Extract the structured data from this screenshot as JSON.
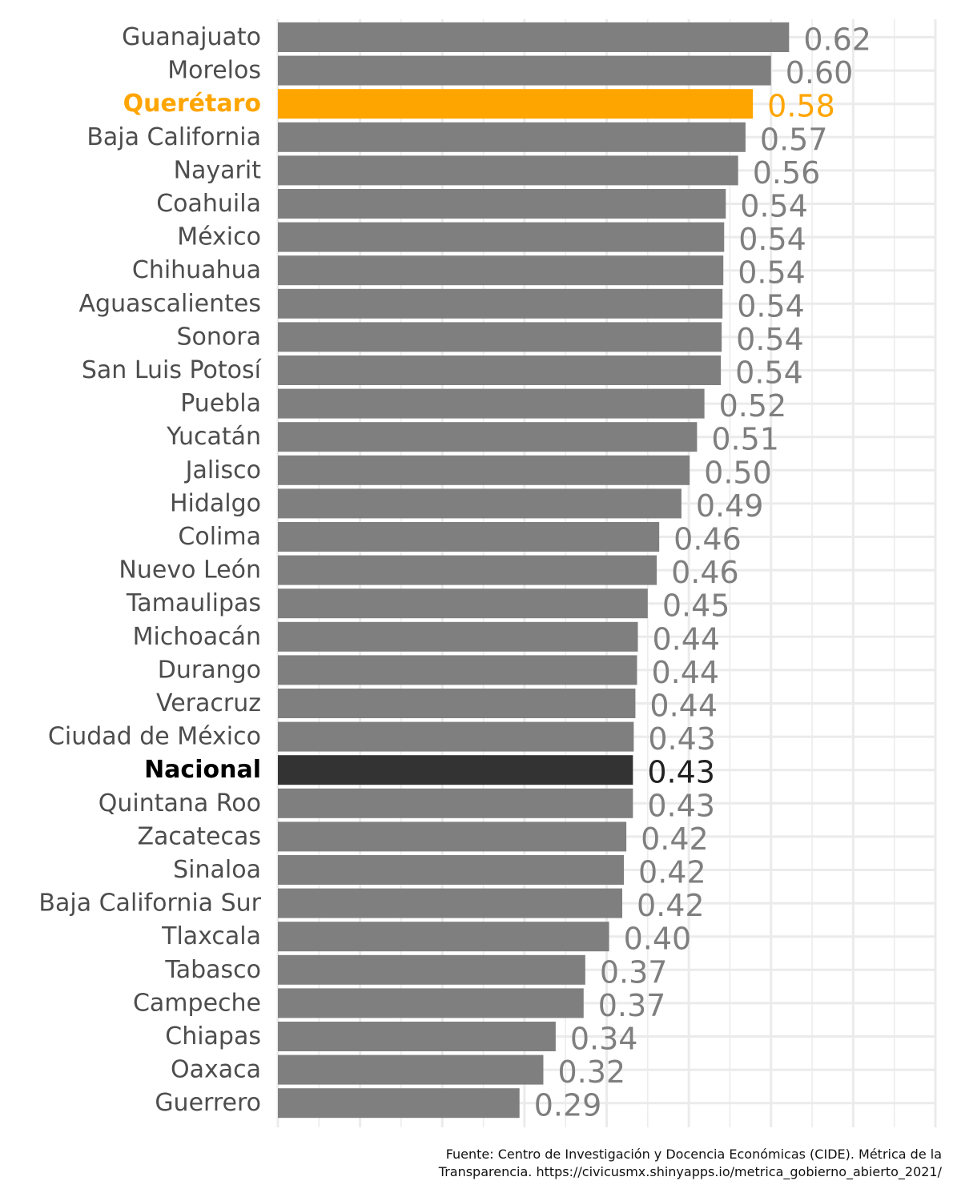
{
  "chart_data": {
    "type": "bar",
    "orientation": "horizontal",
    "categories": [
      "Guanajuato",
      "Morelos",
      "Querétaro",
      "Baja California",
      "Nayarit",
      "Coahuila",
      "México",
      "Chihuahua",
      "Aguascalientes",
      "Sonora",
      "San Luis Potosí",
      "Puebla",
      "Yucatán",
      "Jalisco",
      "Hidalgo",
      "Colima",
      "Nuevo León",
      "Tamaulipas",
      "Michoacán",
      "Durango",
      "Veracruz",
      "Ciudad de México",
      "Nacional",
      "Quintana Roo",
      "Zacatecas",
      "Sinaloa",
      "Baja California Sur",
      "Tlaxcala",
      "Tabasco",
      "Campeche",
      "Chiapas",
      "Oaxaca",
      "Guerrero"
    ],
    "values": [
      0.622,
      0.6,
      0.578,
      0.569,
      0.56,
      0.545,
      0.543,
      0.542,
      0.541,
      0.54,
      0.539,
      0.519,
      0.51,
      0.501,
      0.491,
      0.464,
      0.461,
      0.45,
      0.438,
      0.437,
      0.435,
      0.433,
      0.432,
      0.432,
      0.424,
      0.421,
      0.419,
      0.403,
      0.374,
      0.372,
      0.338,
      0.323,
      0.294
    ],
    "labels": [
      "0.62",
      "0.60",
      "0.58",
      "0.57",
      "0.56",
      "0.54",
      "0.54",
      "0.54",
      "0.54",
      "0.54",
      "0.54",
      "0.52",
      "0.51",
      "0.50",
      "0.49",
      "0.46",
      "0.46",
      "0.45",
      "0.44",
      "0.44",
      "0.44",
      "0.43",
      "0.43",
      "0.43",
      "0.42",
      "0.42",
      "0.42",
      "0.40",
      "0.37",
      "0.37",
      "0.34",
      "0.32",
      "0.29"
    ],
    "highlight": {
      "Querétaro": "#FFA500",
      "Nacional": "#333333"
    },
    "default_color": "#7F7F7F",
    "label_color": "#7F7F7F",
    "xlim": [
      0,
      0.8
    ],
    "grid": true,
    "title": "",
    "xlabel": "",
    "ylabel": ""
  },
  "caption": {
    "line1": "Fuente: Centro de Investigación y Docencia Económicas (CIDE). Métrica de la",
    "line2": "Transparencia. https://civicusmx.shinyapps.io/metrica_gobierno_abierto_2021/"
  }
}
